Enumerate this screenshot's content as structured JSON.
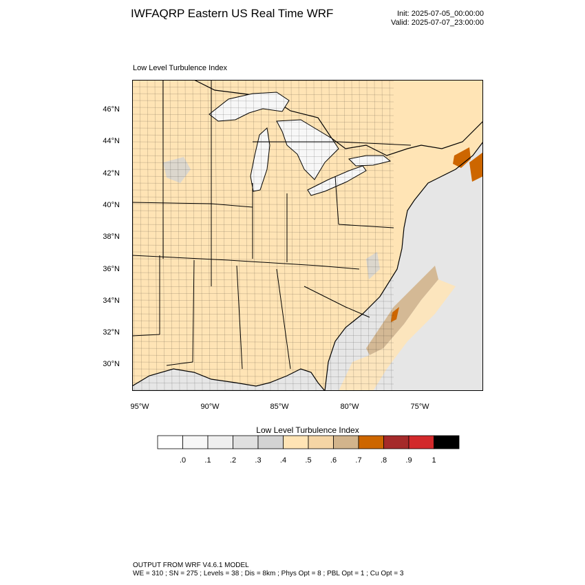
{
  "header": {
    "title": "IWFAQRP Eastern US Real Time WRF",
    "init": "Init: 2025-07-05_00:00:00",
    "valid": "Valid: 2025-07-07_23:00:00"
  },
  "map": {
    "subtitle": "Low Level Turbulence Index",
    "lat_labels": [
      "46°N",
      "44°N",
      "42°N",
      "40°N",
      "38°N",
      "36°N",
      "34°N",
      "32°N",
      "30°N"
    ],
    "lon_labels": [
      "95°W",
      "90°W",
      "85°W",
      "80°W",
      "75°W"
    ],
    "colors": {
      "land_dominant": "#ffe4b5",
      "water_low": "#e6e6e6",
      "lakes": "#f7f7f7",
      "high_offshore": "#cd6600"
    }
  },
  "legend": {
    "title": "Low Level Turbulence Index",
    "colors": [
      "#ffffff",
      "#f7f7f7",
      "#efefef",
      "#e0e0e0",
      "#d3d3d3",
      "#ffe4b5",
      "#f5d5a5",
      "#d2b48c",
      "#cd6600",
      "#a52a2a",
      "#d2292b",
      "#000000"
    ],
    "tick_labels": [
      ".0",
      ".1",
      ".2",
      ".3",
      ".4",
      ".5",
      ".6",
      ".7",
      ".8",
      ".9",
      "1"
    ]
  },
  "footer": {
    "line1": "OUTPUT FROM WRF V4.6.1 MODEL",
    "line2": "WE = 310 ; SN = 275 ; Levels = 38 ; Dis = 8km ; Phys Opt = 8 ; PBL Opt = 1 ; Cu Opt = 3"
  }
}
